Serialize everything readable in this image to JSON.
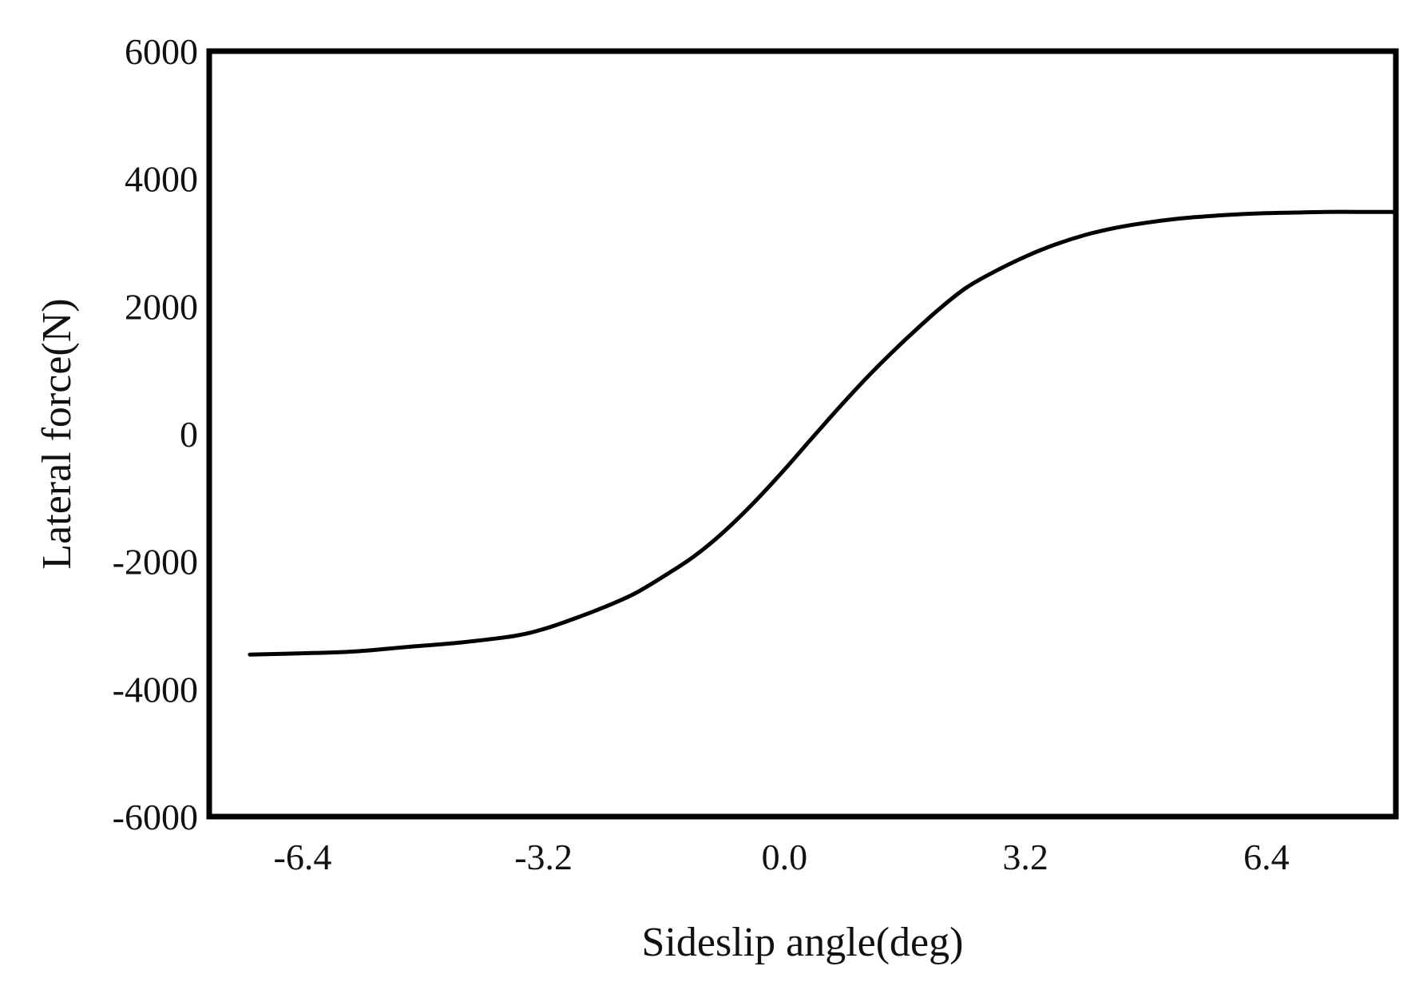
{
  "chart_data": {
    "type": "line",
    "title": "",
    "xlabel": "Sideslip angle(deg)",
    "ylabel": "Lateral force(N)",
    "xlim": [
      -7.64,
      8.12
    ],
    "ylim": [
      -6000,
      6000
    ],
    "x_ticks": [
      -6.4,
      -3.2,
      0.0,
      3.2,
      6.4
    ],
    "x_tick_labels": [
      "-6.4",
      "-3.2",
      "0.0",
      "3.2",
      "6.4"
    ],
    "y_ticks": [
      6000,
      4000,
      2000,
      0,
      -2000,
      -4000,
      -6000
    ],
    "y_tick_labels": [
      "6000",
      "4000",
      "2000",
      "0",
      "-2000",
      "-4000",
      "-6000"
    ],
    "grid": false,
    "legend": "none",
    "line_color": "#000000",
    "series": [
      {
        "x": [
          -7.1,
          -6.4,
          -5.7,
          -5.0,
          -4.3,
          -3.6,
          -3.2,
          -2.8,
          -2.4,
          -2.0,
          -1.6,
          -1.2,
          -0.8,
          -0.4,
          0.0,
          0.4,
          0.8,
          1.2,
          1.6,
          2.0,
          2.4,
          2.8,
          3.2,
          3.6,
          4.0,
          4.4,
          4.8,
          5.2,
          5.6,
          6.0,
          6.4,
          6.8,
          7.2,
          7.6,
          8.12
        ],
        "y": [
          -3460,
          -3440,
          -3410,
          -3340,
          -3270,
          -3170,
          -3060,
          -2900,
          -2720,
          -2510,
          -2230,
          -1920,
          -1530,
          -1070,
          -560,
          -20,
          510,
          1010,
          1470,
          1900,
          2280,
          2550,
          2780,
          2970,
          3120,
          3230,
          3310,
          3370,
          3410,
          3440,
          3460,
          3470,
          3480,
          3480,
          3480
        ]
      }
    ]
  }
}
